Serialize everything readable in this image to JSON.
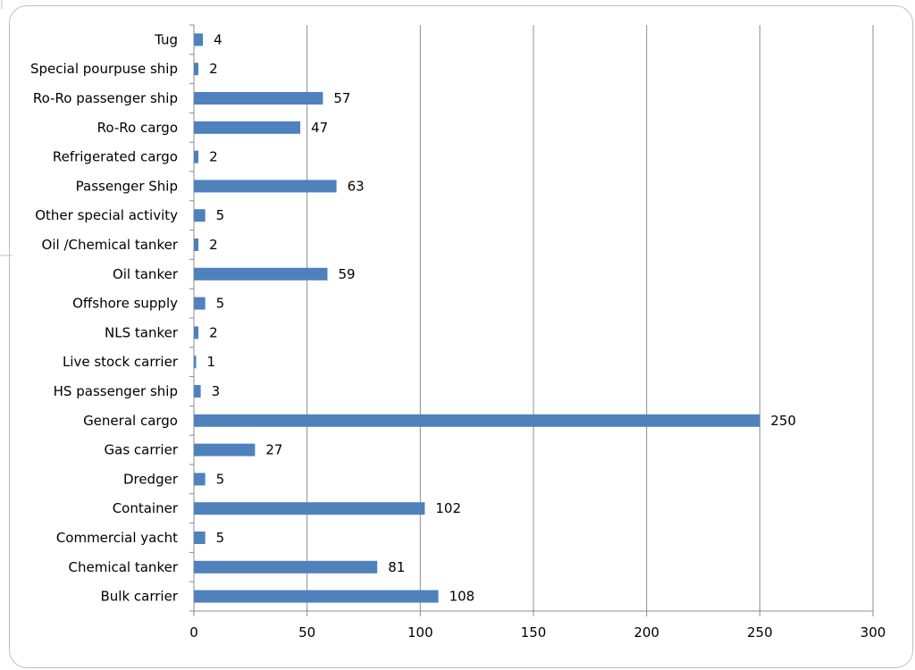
{
  "chart_data": {
    "type": "bar",
    "orientation": "horizontal",
    "title": "",
    "xlabel": "",
    "ylabel": "",
    "categories": [
      "Tug",
      "Special pourpuse ship",
      "Ro-Ro passenger ship",
      "Ro-Ro cargo",
      "Refrigerated cargo",
      "Passenger Ship",
      "Other special activity",
      "Oil /Chemical tanker",
      "Oil tanker",
      "Offshore supply",
      "NLS tanker",
      "Live stock carrier",
      "HS passenger ship",
      "General cargo",
      "Gas carrier",
      "Dredger",
      "Container",
      "Commercial yacht",
      "Chemical tanker",
      "Bulk carrier"
    ],
    "values": [
      4,
      2,
      57,
      47,
      2,
      63,
      5,
      2,
      59,
      5,
      2,
      1,
      3,
      250,
      27,
      5,
      102,
      5,
      81,
      108
    ],
    "xlim": [
      0,
      300
    ],
    "xticks": [
      0,
      50,
      100,
      150,
      200,
      250,
      300
    ],
    "grid": "vertical",
    "legend": "none",
    "bar_color": "#4f81bd",
    "grid_color": "#8c8c8c",
    "axis_color": "#8c8c8c",
    "data_labels": true
  }
}
